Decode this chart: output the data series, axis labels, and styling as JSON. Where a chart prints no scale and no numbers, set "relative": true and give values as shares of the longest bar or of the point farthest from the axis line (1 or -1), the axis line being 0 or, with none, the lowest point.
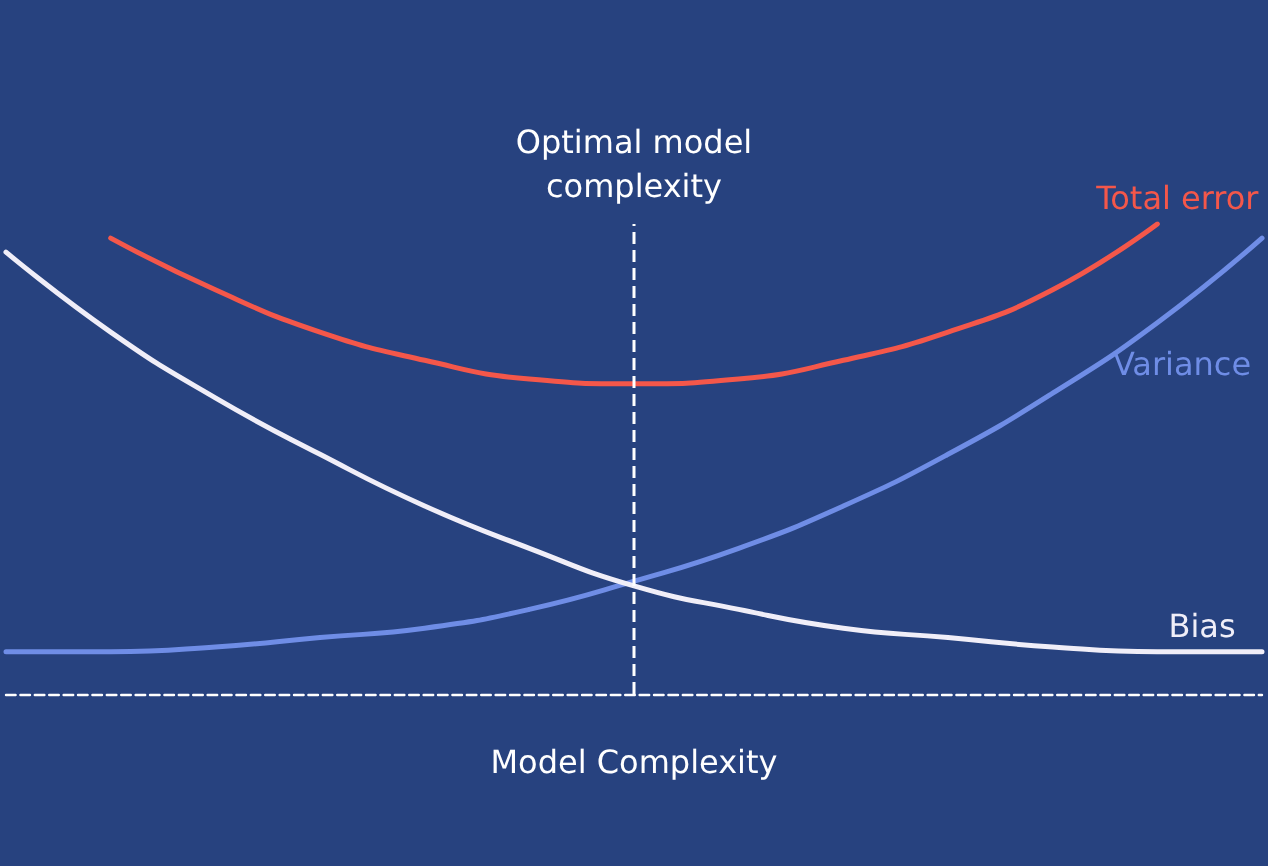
{
  "chart_data": {
    "type": "line",
    "relative": true,
    "xlabel": "Model Complexity",
    "categories": [
      null,
      null,
      null,
      null,
      null,
      null,
      null,
      null,
      null,
      null,
      null,
      null,
      null
    ],
    "series": [
      {
        "name": "Total error",
        "color": "#f4574a",
        "values": [
          null,
          0.97,
          0.86,
          0.77,
          0.71,
          0.67,
          0.66,
          0.67,
          0.71,
          0.77,
          0.86,
          1.0,
          null
        ]
      },
      {
        "name": "Variance",
        "color": "#6f8de6",
        "values": [
          0.09,
          0.09,
          0.1,
          0.12,
          0.14,
          0.18,
          0.24,
          0.31,
          0.4,
          0.51,
          0.64,
          0.79,
          0.97
        ]
      },
      {
        "name": "Bias",
        "color": "#f0eef8",
        "values": [
          0.94,
          0.77,
          0.63,
          0.51,
          0.4,
          0.31,
          0.23,
          0.18,
          0.14,
          0.12,
          0.1,
          0.09,
          0.09
        ]
      }
    ],
    "annotations": [
      "Optimal model\ncomplexity"
    ],
    "legend": false,
    "grid": false,
    "line_style": "solid"
  }
}
